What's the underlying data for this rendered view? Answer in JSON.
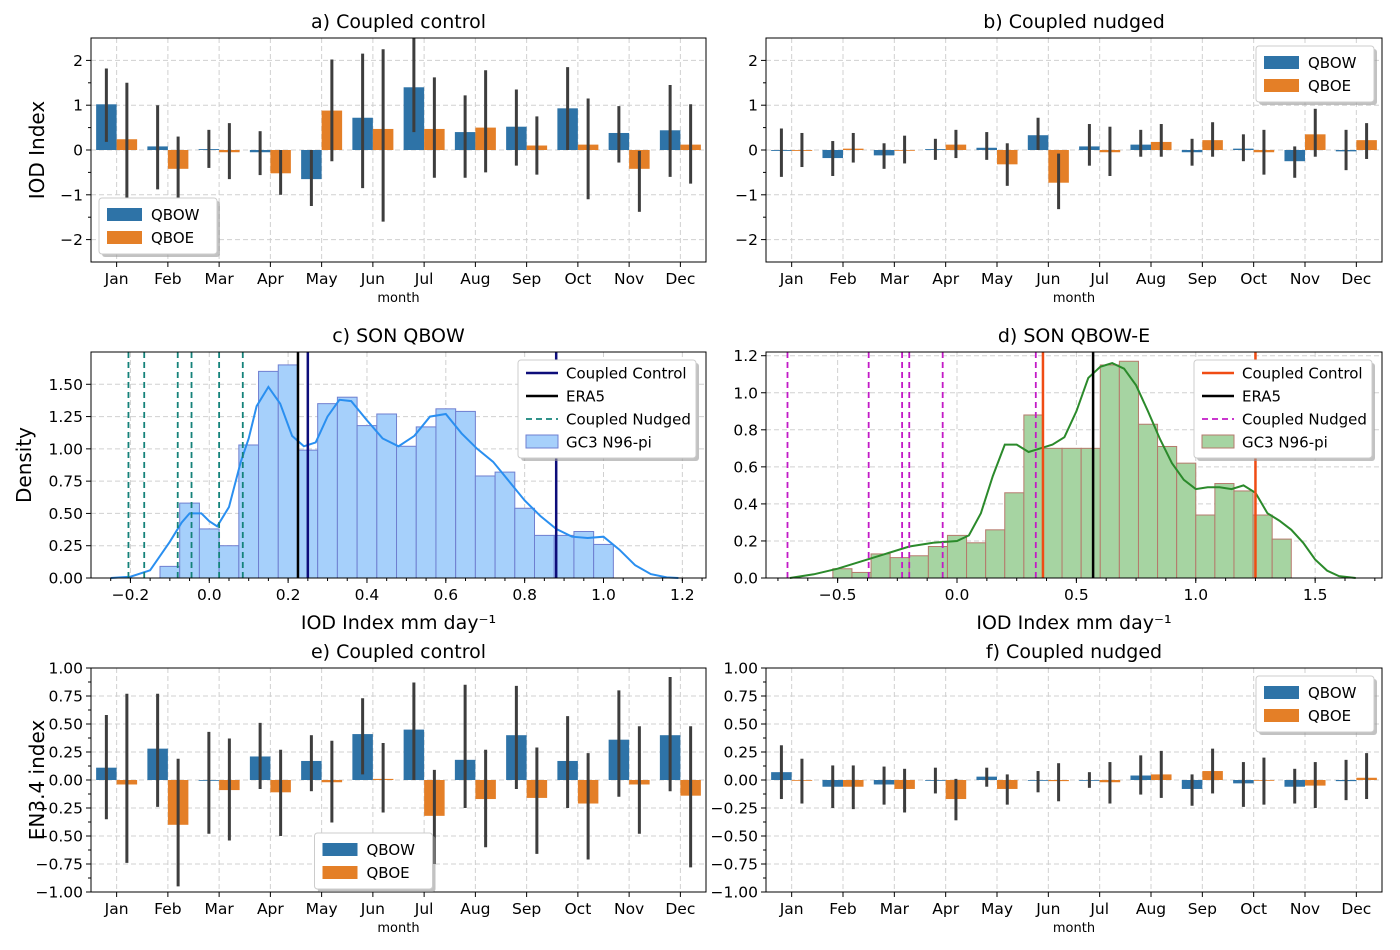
{
  "colors": {
    "qbow": "#2e73a7",
    "qboe": "#e47f27",
    "err": "#3d3d3d",
    "hist_c_fill": "#a6d0fb",
    "hist_c_edge": "#6f7fd0",
    "kde_c": "#2a8ff0",
    "navy": "#0d0d7a",
    "teal": "#14827a",
    "hist_d_fill": "#a6d4a2",
    "hist_d_edge": "#b57a6c",
    "kde_d": "#2b8a2b",
    "red": "#f04c14",
    "magenta": "#c31ac7"
  },
  "chart_data": [
    {
      "id": "a",
      "type": "bar",
      "title": "a) Coupled control",
      "xlabel": "month",
      "ylabel": "IOD Index",
      "ylim": [
        -2.5,
        2.5
      ],
      "yticks": [
        -2,
        -1,
        0,
        1,
        2
      ],
      "yticklabels": [
        "−2",
        "−1",
        "0",
        "1",
        "2"
      ],
      "categories": [
        "Jan",
        "Feb",
        "Mar",
        "Apr",
        "May",
        "Jun",
        "Jul",
        "Aug",
        "Sep",
        "Oct",
        "Nov",
        "Dec"
      ],
      "legend": {
        "position": "lower-left",
        "labels": [
          "QBOW",
          "QBOE"
        ]
      },
      "series": [
        {
          "name": "QBOW",
          "values": [
            1.02,
            0.08,
            0.02,
            -0.05,
            -0.65,
            0.72,
            1.4,
            0.4,
            0.52,
            0.93,
            0.38,
            0.44
          ],
          "err_low": [
            0.18,
            -0.88,
            -0.4,
            -0.56,
            -1.25,
            -0.85,
            0.4,
            -0.62,
            -0.35,
            0.0,
            -0.28,
            -0.6
          ],
          "err_high": [
            1.82,
            1.0,
            0.45,
            0.42,
            0.0,
            2.15,
            2.5,
            1.22,
            1.35,
            1.85,
            0.98,
            1.45
          ]
        },
        {
          "name": "QBOE",
          "values": [
            0.24,
            -0.42,
            -0.05,
            -0.52,
            0.88,
            0.47,
            0.47,
            0.5,
            0.1,
            0.12,
            -0.42,
            0.12
          ],
          "err_low": [
            -1.3,
            -1.1,
            -0.65,
            -1.0,
            -0.25,
            -1.6,
            -0.62,
            -0.5,
            -0.55,
            -1.1,
            -1.38,
            -0.75
          ],
          "err_high": [
            1.5,
            0.3,
            0.6,
            0.0,
            2.02,
            2.25,
            1.62,
            1.78,
            0.75,
            1.15,
            -0.02,
            1.02
          ]
        }
      ]
    },
    {
      "id": "b",
      "type": "bar",
      "title": "b) Coupled nudged",
      "xlabel": "month",
      "ylabel": "",
      "ylim": [
        -2.5,
        2.5
      ],
      "yticks": [
        -2,
        -1,
        0,
        1,
        2
      ],
      "yticklabels": [
        "−2",
        "−1",
        "0",
        "1",
        "2"
      ],
      "categories": [
        "Jan",
        "Feb",
        "Mar",
        "Apr",
        "May",
        "Jun",
        "Jul",
        "Aug",
        "Sep",
        "Oct",
        "Nov",
        "Dec"
      ],
      "legend": {
        "position": "upper-right",
        "labels": [
          "QBOW",
          "QBOE"
        ]
      },
      "series": [
        {
          "name": "QBOW",
          "values": [
            -0.02,
            -0.18,
            -0.12,
            0.02,
            0.05,
            0.33,
            0.08,
            0.12,
            -0.05,
            0.03,
            -0.25,
            -0.03
          ],
          "err_low": [
            -0.6,
            -0.58,
            -0.42,
            -0.22,
            -0.22,
            0.0,
            -0.35,
            -0.15,
            -0.35,
            -0.25,
            -0.62,
            -0.45
          ],
          "err_high": [
            0.48,
            0.2,
            0.15,
            0.25,
            0.4,
            0.72,
            0.58,
            0.45,
            0.25,
            0.35,
            0.08,
            0.45
          ]
        },
        {
          "name": "QBOE",
          "values": [
            -0.02,
            0.03,
            0.0,
            0.12,
            -0.32,
            -0.73,
            -0.05,
            0.18,
            0.22,
            -0.05,
            0.35,
            0.22
          ],
          "err_low": [
            -0.38,
            -0.28,
            -0.3,
            -0.18,
            -0.8,
            -1.32,
            -0.58,
            -0.15,
            -0.15,
            -0.55,
            -0.15,
            -0.2
          ],
          "err_high": [
            0.38,
            0.38,
            0.32,
            0.45,
            0.15,
            -0.08,
            0.52,
            0.58,
            0.62,
            0.45,
            0.92,
            0.6
          ]
        }
      ]
    },
    {
      "id": "c",
      "type": "histogram",
      "title": "c) SON QBOW",
      "xlabel": "IOD Index mm day⁻¹",
      "ylabel": "Density",
      "xlim": [
        -0.3,
        1.26
      ],
      "ylim": [
        0,
        1.75
      ],
      "xticks": [
        -0.2,
        0.0,
        0.2,
        0.4,
        0.6,
        0.8,
        1.0,
        1.2
      ],
      "xticklabels": [
        "−0.2",
        "0.0",
        "0.2",
        "0.4",
        "0.6",
        "0.8",
        "1.0",
        "1.2"
      ],
      "yticks": [
        0,
        0.25,
        0.5,
        0.75,
        1.0,
        1.25,
        1.5
      ],
      "yticklabels": [
        "0.00",
        "0.25",
        "0.50",
        "0.75",
        "1.00",
        "1.25",
        "1.50"
      ],
      "bins": {
        "start": -0.125,
        "width": 0.05,
        "heights": [
          0.09,
          0.58,
          0.38,
          0.25,
          1.03,
          1.6,
          1.65,
          0.99,
          1.35,
          1.4,
          1.18,
          1.27,
          1.02,
          1.17,
          1.31,
          1.29,
          0.79,
          0.82,
          0.54,
          0.33,
          0.33,
          0.36,
          0.26
        ]
      },
      "kde": {
        "x": [
          -0.25,
          -0.2,
          -0.15,
          -0.1,
          -0.07,
          -0.05,
          -0.02,
          0.0,
          0.02,
          0.05,
          0.08,
          0.1,
          0.12,
          0.15,
          0.18,
          0.21,
          0.24,
          0.27,
          0.3,
          0.33,
          0.36,
          0.4,
          0.44,
          0.48,
          0.52,
          0.56,
          0.6,
          0.64,
          0.68,
          0.72,
          0.76,
          0.8,
          0.84,
          0.88,
          0.92,
          0.96,
          1.0,
          1.04,
          1.08,
          1.12,
          1.16,
          1.19
        ],
        "y": [
          0.0,
          0.01,
          0.06,
          0.28,
          0.43,
          0.5,
          0.5,
          0.44,
          0.4,
          0.55,
          0.9,
          1.08,
          1.33,
          1.48,
          1.35,
          1.1,
          1.02,
          1.05,
          1.25,
          1.38,
          1.37,
          1.22,
          1.08,
          1.02,
          1.1,
          1.25,
          1.27,
          1.12,
          1.0,
          0.9,
          0.75,
          0.6,
          0.48,
          0.38,
          0.32,
          0.31,
          0.32,
          0.22,
          0.1,
          0.03,
          0.005,
          0.0
        ]
      },
      "vlines": [
        {
          "legend": "Coupled Control",
          "x": [
            0.25,
            0.88
          ],
          "style": "solid"
        },
        {
          "legend": "ERA5",
          "x": [
            0.225
          ],
          "style": "solid"
        },
        {
          "legend": "Coupled Nudged",
          "x": [
            -0.205,
            -0.165,
            -0.08,
            -0.045,
            0.025,
            0.085
          ],
          "style": "dashed"
        }
      ],
      "legend": {
        "position": "upper-right",
        "labels": [
          "Coupled Control",
          "ERA5",
          "Coupled Nudged",
          "GC3 N96-pi"
        ]
      }
    },
    {
      "id": "d",
      "type": "histogram",
      "title": "d) SON QBOW-E",
      "xlabel": "IOD Index mm day⁻¹",
      "ylabel": "",
      "xlim": [
        -0.8,
        1.78
      ],
      "ylim": [
        0,
        1.22
      ],
      "xticks": [
        -0.5,
        0.0,
        0.5,
        1.0,
        1.5
      ],
      "xticklabels": [
        "−0.5",
        "0.0",
        "0.5",
        "1.0",
        "1.5"
      ],
      "yticks": [
        0,
        0.2,
        0.4,
        0.6,
        0.8,
        1.0,
        1.2
      ],
      "yticklabels": [
        "0.0",
        "0.2",
        "0.4",
        "0.6",
        "0.8",
        "1.0",
        "1.2"
      ],
      "bins": {
        "start": -0.52,
        "width": 0.08,
        "heights": [
          0.05,
          0.03,
          0.13,
          0.11,
          0.12,
          0.17,
          0.23,
          0.19,
          0.26,
          0.46,
          0.88,
          0.7,
          0.7,
          0.7,
          1.15,
          1.17,
          0.83,
          0.71,
          0.62,
          0.34,
          0.51,
          0.47,
          0.34,
          0.21
        ]
      },
      "kde": {
        "x": [
          -0.7,
          -0.6,
          -0.5,
          -0.4,
          -0.3,
          -0.2,
          -0.1,
          0.0,
          0.05,
          0.1,
          0.15,
          0.2,
          0.25,
          0.3,
          0.35,
          0.4,
          0.45,
          0.5,
          0.55,
          0.6,
          0.65,
          0.7,
          0.75,
          0.8,
          0.85,
          0.9,
          0.95,
          1.0,
          1.05,
          1.1,
          1.15,
          1.2,
          1.25,
          1.3,
          1.35,
          1.4,
          1.45,
          1.5,
          1.55,
          1.6,
          1.67
        ],
        "y": [
          0.0,
          0.02,
          0.05,
          0.09,
          0.13,
          0.17,
          0.19,
          0.2,
          0.23,
          0.35,
          0.55,
          0.72,
          0.72,
          0.68,
          0.7,
          0.72,
          0.76,
          0.9,
          1.08,
          1.14,
          1.16,
          1.13,
          1.04,
          0.9,
          0.75,
          0.62,
          0.53,
          0.48,
          0.49,
          0.49,
          0.48,
          0.5,
          0.46,
          0.35,
          0.31,
          0.26,
          0.19,
          0.1,
          0.04,
          0.01,
          0.0
        ]
      },
      "vlines": [
        {
          "legend": "Coupled Control",
          "x": [
            0.36,
            1.25
          ],
          "style": "solid"
        },
        {
          "legend": "ERA5",
          "x": [
            0.57
          ],
          "style": "solid"
        },
        {
          "legend": "Coupled Nudged",
          "x": [
            -0.71,
            -0.37,
            -0.23,
            -0.2,
            -0.06,
            0.33
          ],
          "style": "dashed"
        }
      ],
      "legend": {
        "position": "upper-right",
        "labels": [
          "Coupled Control",
          "ERA5",
          "Coupled Nudged",
          "GC3 N96-pi"
        ]
      }
    },
    {
      "id": "e",
      "type": "bar",
      "title": "e) Coupled control",
      "xlabel": "month",
      "ylabel": "EN3.4 index",
      "ylim": [
        -1.0,
        1.0
      ],
      "yticks": [
        -1.0,
        -0.75,
        -0.5,
        -0.25,
        0.0,
        0.25,
        0.5,
        0.75,
        1.0
      ],
      "yticklabels": [
        "−1.00",
        "−0.75",
        "−0.50",
        "−0.25",
        "0.00",
        "0.25",
        "0.50",
        "0.75",
        "1.00"
      ],
      "categories": [
        "Jan",
        "Feb",
        "Mar",
        "Apr",
        "May",
        "Jun",
        "Jul",
        "Aug",
        "Sep",
        "Oct",
        "Nov",
        "Dec"
      ],
      "legend": {
        "position": "lower-center",
        "labels": [
          "QBOW",
          "QBOE"
        ]
      },
      "series": [
        {
          "name": "QBOW",
          "values": [
            0.11,
            0.28,
            0.0,
            0.21,
            0.17,
            0.41,
            0.45,
            0.18,
            0.4,
            0.17,
            0.36,
            0.4
          ],
          "err_low": [
            -0.35,
            -0.24,
            -0.48,
            -0.08,
            -0.1,
            0.05,
            0.0,
            -0.25,
            -0.08,
            -0.25,
            -0.15,
            -0.1
          ],
          "err_high": [
            0.58,
            0.77,
            0.43,
            0.51,
            0.4,
            0.73,
            0.87,
            0.85,
            0.84,
            0.57,
            0.8,
            0.92
          ]
        },
        {
          "name": "QBOE",
          "values": [
            -0.04,
            -0.4,
            -0.09,
            -0.11,
            -0.02,
            0.01,
            -0.32,
            -0.17,
            -0.16,
            -0.21,
            -0.04,
            -0.14
          ],
          "err_low": [
            -0.74,
            -0.95,
            -0.54,
            -0.5,
            -0.38,
            -0.29,
            -0.75,
            -0.6,
            -0.66,
            -0.71,
            -0.48,
            -0.78
          ],
          "err_high": [
            0.77,
            0.19,
            0.37,
            0.27,
            0.35,
            0.33,
            0.09,
            0.27,
            0.29,
            0.24,
            0.48,
            0.48
          ]
        }
      ]
    },
    {
      "id": "f",
      "type": "bar",
      "title": "f) Coupled nudged",
      "xlabel": "month",
      "ylabel": "",
      "ylim": [
        -1.0,
        1.0
      ],
      "yticks": [
        -1.0,
        -0.75,
        -0.5,
        -0.25,
        0.0,
        0.25,
        0.5,
        0.75,
        1.0
      ],
      "yticklabels": [
        "−1.00",
        "−0.75",
        "−0.50",
        "−0.25",
        "0.00",
        "0.25",
        "0.50",
        "0.75",
        "1.00"
      ],
      "categories": [
        "Jan",
        "Feb",
        "Mar",
        "Apr",
        "May",
        "Jun",
        "Jul",
        "Aug",
        "Sep",
        "Oct",
        "Nov",
        "Dec"
      ],
      "legend": {
        "position": "upper-right",
        "labels": [
          "QBOW",
          "QBOE"
        ]
      },
      "series": [
        {
          "name": "QBOW",
          "values": [
            0.07,
            -0.06,
            -0.04,
            0.0,
            0.03,
            0.0,
            0.0,
            0.04,
            -0.08,
            -0.03,
            -0.06,
            -0.01
          ],
          "err_low": [
            -0.17,
            -0.25,
            -0.22,
            -0.12,
            -0.06,
            -0.11,
            -0.07,
            -0.13,
            -0.23,
            -0.24,
            -0.21,
            -0.18
          ],
          "err_high": [
            0.31,
            0.13,
            0.12,
            0.11,
            0.11,
            0.08,
            0.07,
            0.22,
            0.05,
            0.16,
            0.1,
            0.18
          ]
        },
        {
          "name": "QBOE",
          "values": [
            0.0,
            -0.06,
            -0.08,
            -0.17,
            -0.08,
            -0.01,
            -0.02,
            0.05,
            0.08,
            0.0,
            -0.05,
            0.02
          ],
          "err_low": [
            -0.21,
            -0.26,
            -0.29,
            -0.36,
            -0.22,
            -0.19,
            -0.21,
            -0.16,
            -0.12,
            -0.22,
            -0.25,
            -0.17
          ],
          "err_high": [
            0.19,
            0.13,
            0.1,
            0.01,
            0.05,
            0.15,
            0.16,
            0.26,
            0.28,
            0.2,
            0.16,
            0.24
          ]
        }
      ]
    }
  ]
}
